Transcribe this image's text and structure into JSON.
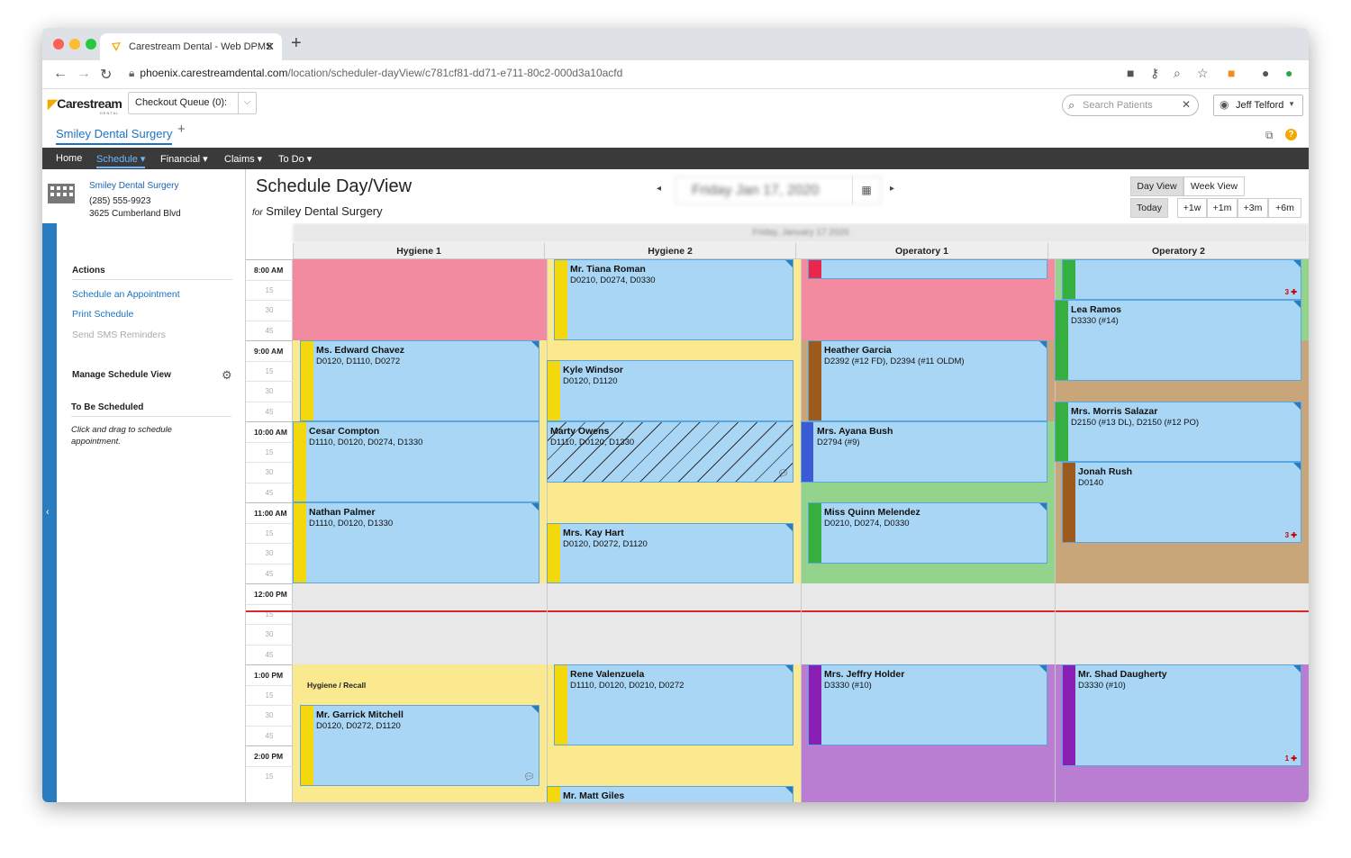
{
  "browser": {
    "tab_title": "Carestream Dental - Web DPMS",
    "url_host": "phoenix.carestreamdental.com",
    "url_path": "/location/scheduler-dayView/c781cf81-dd71-e711-80c2-000d3a10acfd"
  },
  "header": {
    "logo": "Carestream",
    "logo_sub": "DENTAL",
    "checkout_queue": "Checkout Queue (0):",
    "search_placeholder": "Search Patients",
    "user_name": "Jeff Telford",
    "practice_name": "Smiley Dental Surgery"
  },
  "menu": {
    "home": "Home",
    "schedule": "Schedule ▾",
    "financial": "Financial ▾",
    "claims": "Claims ▾",
    "todo": "To Do ▾"
  },
  "sidebar": {
    "location_name": "Smiley Dental Surgery",
    "location_phone": "(285) 555-9923",
    "location_address": "3625 Cumberland Blvd",
    "actions_heading": "Actions",
    "action_schedule": "Schedule an Appointment",
    "action_print": "Print Schedule",
    "action_sms": "Send SMS Reminders",
    "manage_heading": "Manage Schedule View",
    "tbs_heading": "To Be Scheduled",
    "tbs_note": "Click and drag to schedule appointment."
  },
  "main": {
    "title": "Schedule Day/View",
    "for_label": "for",
    "practice": "Smiley Dental Surgery",
    "date": "Friday Jan 17, 2020",
    "date_banner": "Friday, January 17 2020",
    "day_view": "Day View",
    "week_view": "Week View",
    "today": "Today",
    "plus_1w": "+1w",
    "plus_1m": "+1m",
    "plus_3m": "+3m",
    "plus_6m": "+6m"
  },
  "columns": [
    "Hygiene 1",
    "Hygiene 2",
    "Operatory 1",
    "Operatory 2"
  ],
  "times": [
    "8:00 AM",
    "15",
    "30",
    "45",
    "9:00 AM",
    "15",
    "30",
    "45",
    "10:00 AM",
    "15",
    "30",
    "45",
    "11:00 AM",
    "15",
    "30",
    "45",
    "12:00 PM",
    "15",
    "30",
    "45",
    "1:00 PM",
    "15",
    "30",
    "45",
    "2:00 PM",
    "15"
  ],
  "block_label": "Hygiene / Recall",
  "appointments": {
    "a1": {
      "name": "Mr. Tiana Roman",
      "codes": "D0210, D0274, D0330"
    },
    "a2": {
      "name": "Ms. Edward Chavez",
      "codes": "D0120, D1110, D0272"
    },
    "a3": {
      "name": "Kyle Windsor",
      "codes": "D0120, D1120"
    },
    "a4": {
      "name": "Heather Garcia",
      "codes": "D2392 (#12 FD), D2394 (#11 OLDM)"
    },
    "a5": {
      "name": "Lea Ramos",
      "codes": "D3330 (#14)"
    },
    "a6": {
      "name": "Cesar Compton",
      "codes": "D1110, D0120, D0274, D1330"
    },
    "a7": {
      "name": "Marty Owens",
      "codes": "D1110, D0120, D1330"
    },
    "a8": {
      "name": "Mrs. Ayana Bush",
      "codes": "D2794 (#9)"
    },
    "a9": {
      "name": "Mrs. Morris Salazar",
      "codes": "D2150 (#13 DL), D2150 (#12 PO)"
    },
    "a10": {
      "name": "Jonah Rush",
      "codes": "D0140"
    },
    "a11": {
      "name": "Nathan Palmer",
      "codes": "D1110, D0120, D1330"
    },
    "a12": {
      "name": "Mrs. Kay Hart",
      "codes": "D0120, D0272, D1120"
    },
    "a13": {
      "name": "Miss Quinn Melendez",
      "codes": "D0210, D0274, D0330"
    },
    "a14": {
      "name": "Rene Valenzuela",
      "codes": "D1110, D0120, D0210, D0272"
    },
    "a15": {
      "name": "Mrs. Jeffry Holder",
      "codes": "D3330 (#10)"
    },
    "a16": {
      "name": "Mr. Shad Daugherty",
      "codes": "D3330 (#10)"
    },
    "a17": {
      "name": "Mr. Garrick Mitchell",
      "codes": "D0120, D0272, D1120"
    },
    "a18": {
      "name": "Mr. Matt Giles",
      "codes": ""
    }
  },
  "badges": {
    "op2_top": "3",
    "jonah": "3",
    "shad": "1"
  },
  "colors": {
    "accent": "#1a73c4",
    "appointment": "#a9d6f5",
    "pink_block": "#f28aa0",
    "yellow_block": "#fbe98f",
    "green_block": "#93d38c",
    "brown_block": "#c9a67a",
    "purple_block": "#b97ed1",
    "now_line": "#d62a2a"
  }
}
